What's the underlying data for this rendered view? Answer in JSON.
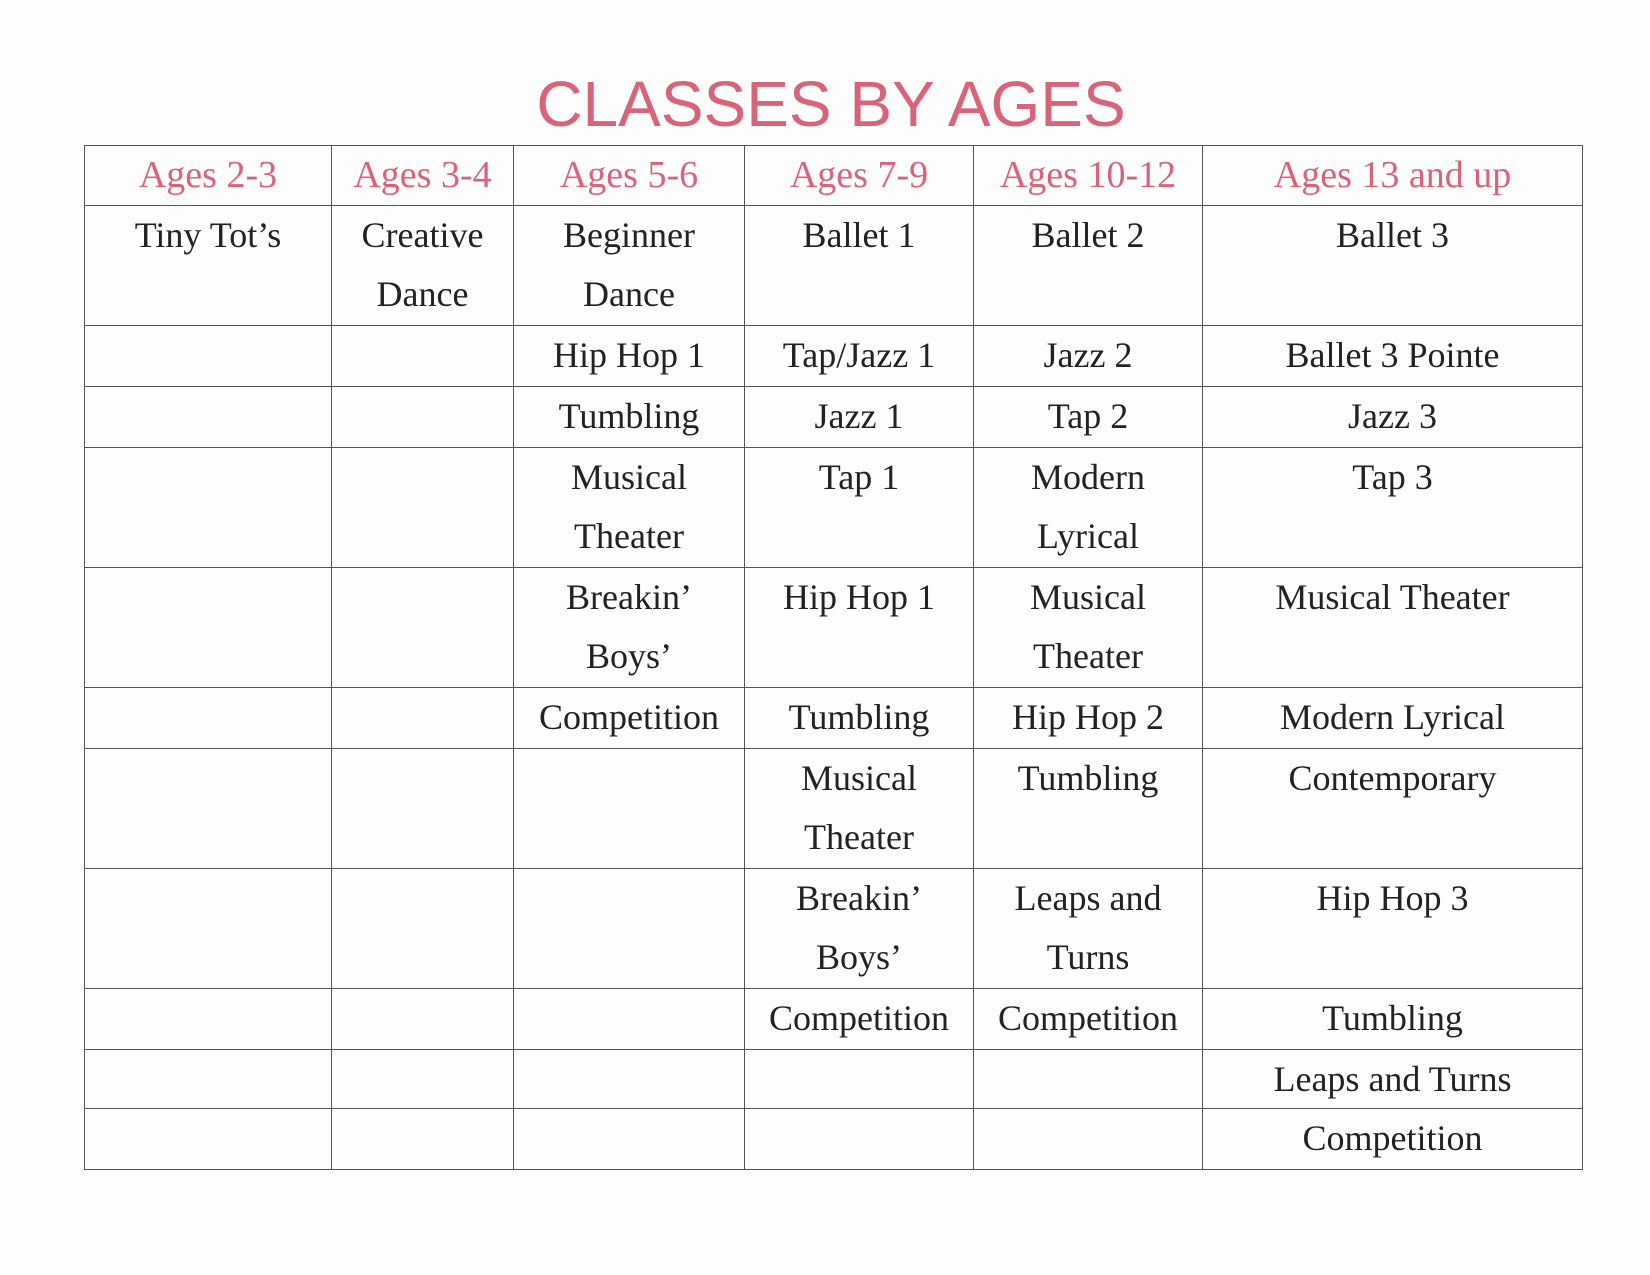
{
  "title": "CLASSES BY AGES",
  "colors": {
    "accent": "#d96478",
    "text": "#222222",
    "grid": "#555555"
  },
  "headers": [
    "Ages 2-3",
    "Ages 3-4",
    "Ages 5-6",
    "Ages 7-9",
    "Ages 10-12",
    "Ages 13 and up"
  ],
  "rows": [
    [
      "Tiny Tot’s",
      "Creative\nDance",
      "Beginner\nDance",
      "Ballet 1",
      "Ballet 2",
      "Ballet 3"
    ],
    [
      "",
      "",
      "Hip Hop 1",
      "Tap/Jazz 1",
      "Jazz 2",
      "Ballet 3 Pointe"
    ],
    [
      "",
      "",
      "Tumbling",
      "Jazz 1",
      "Tap 2",
      "Jazz 3"
    ],
    [
      "",
      "",
      "Musical\nTheater",
      "Tap 1",
      "Modern\nLyrical",
      "Tap 3"
    ],
    [
      "",
      "",
      "Breakin’\nBoys’",
      "Hip Hop 1",
      "Musical\nTheater",
      "Musical Theater"
    ],
    [
      "",
      "",
      "Competition",
      "Tumbling",
      "Hip Hop 2",
      "Modern Lyrical"
    ],
    [
      "",
      "",
      "",
      "Musical\nTheater",
      "Tumbling",
      "Contemporary"
    ],
    [
      "",
      "",
      "",
      "Breakin’\nBoys’",
      "Leaps and\nTurns",
      "Hip Hop 3"
    ],
    [
      "",
      "",
      "",
      "Competition",
      "Competition",
      "Tumbling"
    ],
    [
      "",
      "",
      "",
      "",
      "",
      "Leaps and Turns"
    ],
    [
      "",
      "",
      "",
      "",
      "",
      "Competition"
    ]
  ]
}
